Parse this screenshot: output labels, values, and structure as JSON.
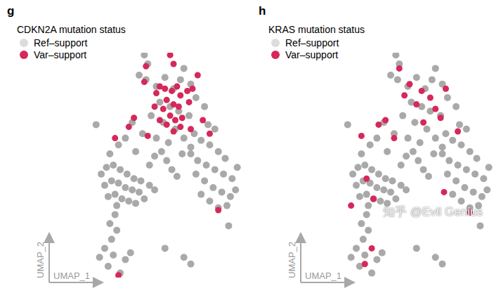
{
  "watermark": "知乎 @Evil Genius",
  "chart_data": [
    {
      "type": "scatter",
      "panel": "g",
      "title": "CDKN2A mutation status",
      "xlabel": "UMAP_1",
      "ylabel": "UMAP_2",
      "xlim": [
        0,
        10
      ],
      "ylim": [
        0,
        10
      ],
      "tick_labels": false,
      "legend": "upper left",
      "series": [
        {
          "name": "Ref–support",
          "color": "#8c8c8c",
          "marker": "circle",
          "x": [
            4.5,
            4.4,
            5.0,
            5.5,
            6.0,
            6.4,
            7.0,
            7.3,
            5.2,
            5.8,
            6.3,
            6.9,
            4.7,
            5.4,
            6.1,
            4.2,
            5.0,
            5.7,
            6.6,
            3.6,
            3.2,
            4.3,
            6.6,
            7.8,
            8.0,
            5.3,
            5.6,
            5.9,
            6.2,
            4.9,
            4.6,
            6.5,
            7.0,
            3.8,
            2.8,
            2.3,
            1.8,
            2.1,
            2.5,
            2.9,
            3.3,
            3.7,
            4.1,
            4.6,
            2.0,
            2.4,
            2.8,
            3.2,
            3.6,
            4.0,
            2.2,
            2.6,
            3.0,
            3.4,
            3.8,
            4.3,
            4.9,
            2.7,
            7.2,
            7.6,
            8.1,
            8.6,
            9.0,
            7.0,
            7.4,
            7.9,
            8.4,
            8.9,
            9.4,
            9.7,
            7.3,
            7.8,
            8.3,
            8.8,
            9.3,
            7.6,
            8.1,
            8.6,
            9.1,
            9.6,
            2.6,
            2.3,
            2.7,
            2.4,
            2.0,
            2.5,
            1.7,
            2.2,
            2.9,
            3.5,
            3.2,
            6.6,
            7.0,
            5.5,
            1.5,
            4.0,
            9.2,
            8.4
          ],
          "y": [
            9.5,
            8.8,
            8.5,
            8.9,
            8.4,
            8.8,
            8.6,
            8.0,
            7.8,
            7.6,
            7.4,
            7.2,
            7.2,
            6.9,
            6.6,
            6.4,
            6.2,
            6.0,
            6.2,
            6.9,
            6.2,
            9.9,
            9.3,
            7.6,
            6.8,
            5.6,
            5.2,
            4.8,
            4.5,
            5.4,
            5.0,
            5.5,
            5.8,
            5.6,
            5.9,
            5.5,
            4.6,
            4.9,
            5.0,
            4.8,
            4.6,
            4.4,
            4.3,
            4.1,
            4.1,
            4.3,
            4.2,
            4.0,
            3.9,
            3.8,
            3.6,
            3.7,
            3.5,
            3.4,
            3.3,
            3.5,
            3.9,
            3.2,
            6.4,
            6.1,
            5.9,
            5.6,
            5.3,
            5.5,
            5.2,
            5.0,
            4.8,
            4.6,
            4.4,
            4.9,
            4.6,
            4.3,
            4.0,
            3.8,
            3.6,
            3.7,
            3.4,
            3.1,
            3.2,
            3.9,
            2.8,
            2.4,
            2.1,
            1.7,
            1.3,
            1.0,
            0.9,
            0.5,
            0.2,
            1.1,
            0.8,
            0.9,
            0.6,
            1.3,
            6.8,
            9.0,
            2.3,
            6.6
          ]
        },
        {
          "name": "Var–support",
          "color": "#d6285a",
          "marker": "circle",
          "x": [
            4.4,
            4.3,
            5.8,
            5.0,
            5.2,
            5.5,
            5.9,
            6.2,
            6.4,
            6.8,
            7.1,
            5.6,
            6.0,
            5.4,
            6.3,
            5.8,
            6.1,
            6.5,
            5.6,
            6.0,
            6.4,
            5.2,
            4.9,
            6.9,
            7.4,
            6.0,
            3.7,
            4.5,
            2.6,
            3.4,
            8.1,
            7.7,
            8.6,
            2.8,
            7.0
          ],
          "y": [
            9.4,
            8.7,
            9.9,
            8.2,
            8.5,
            8.4,
            8.3,
            8.5,
            8.1,
            8.3,
            8.4,
            7.9,
            7.7,
            7.5,
            7.6,
            7.2,
            7.0,
            7.1,
            6.8,
            6.5,
            6.7,
            7.0,
            7.6,
            7.8,
            9.0,
            9.5,
            7.1,
            6.3,
            6.2,
            6.7,
            6.4,
            7.0,
            3.0,
            0.1,
            6.6
          ]
        }
      ]
    },
    {
      "type": "scatter",
      "panel": "h",
      "title": "KRAS mutation status",
      "xlabel": "UMAP_1",
      "ylabel": "UMAP_2",
      "xlim": [
        0,
        10
      ],
      "ylim": [
        0,
        10
      ],
      "tick_labels": false,
      "legend": "upper left",
      "series": [
        {
          "name": "Ref–support",
          "color": "#8c8c8c",
          "marker": "circle",
          "x": [
            4.5,
            4.4,
            5.0,
            5.5,
            6.0,
            6.4,
            7.0,
            7.3,
            5.2,
            5.8,
            6.3,
            6.9,
            4.7,
            5.4,
            6.1,
            4.2,
            5.0,
            5.7,
            6.6,
            3.6,
            3.2,
            4.3,
            6.6,
            7.8,
            8.0,
            5.3,
            5.6,
            5.9,
            6.2,
            4.9,
            4.6,
            6.5,
            7.0,
            3.8,
            2.8,
            2.3,
            1.8,
            2.1,
            2.5,
            2.9,
            3.3,
            3.7,
            4.1,
            4.6,
            2.0,
            2.4,
            2.8,
            3.2,
            3.6,
            4.0,
            2.2,
            2.6,
            3.0,
            3.4,
            3.8,
            4.3,
            4.9,
            2.7,
            7.2,
            7.6,
            8.1,
            8.6,
            9.0,
            7.0,
            7.4,
            7.9,
            8.4,
            8.9,
            9.4,
            9.7,
            7.3,
            7.8,
            8.3,
            8.8,
            9.3,
            7.6,
            8.1,
            8.6,
            9.1,
            9.6,
            2.6,
            2.3,
            2.7,
            2.4,
            2.0,
            2.5,
            1.7,
            2.2,
            2.9,
            3.5,
            3.2,
            6.6,
            7.0,
            5.5,
            1.5,
            4.0,
            9.2,
            8.4
          ],
          "y": [
            9.5,
            8.8,
            8.5,
            8.9,
            8.4,
            8.8,
            8.6,
            8.0,
            7.8,
            7.6,
            7.4,
            7.2,
            7.2,
            6.9,
            6.6,
            6.4,
            6.2,
            6.0,
            6.2,
            6.9,
            6.2,
            9.9,
            9.3,
            7.6,
            6.8,
            5.6,
            5.2,
            4.8,
            4.5,
            5.4,
            5.0,
            5.5,
            5.8,
            5.6,
            5.9,
            5.5,
            4.6,
            4.9,
            5.0,
            4.8,
            4.6,
            4.4,
            4.3,
            4.1,
            4.1,
            4.3,
            4.2,
            4.0,
            3.9,
            3.8,
            3.6,
            3.7,
            3.5,
            3.4,
            3.3,
            3.5,
            3.9,
            3.2,
            6.4,
            6.1,
            5.9,
            5.6,
            5.3,
            5.5,
            5.2,
            5.0,
            4.8,
            4.6,
            4.4,
            4.9,
            4.6,
            4.3,
            4.0,
            3.8,
            3.6,
            3.7,
            3.4,
            3.1,
            3.2,
            3.9,
            2.8,
            2.4,
            2.1,
            1.7,
            1.3,
            1.0,
            0.9,
            0.5,
            0.2,
            1.1,
            0.8,
            0.9,
            0.6,
            1.3,
            6.8,
            9.0,
            2.3,
            6.6
          ]
        },
        {
          "name": "Var–support",
          "color": "#d6285a",
          "marker": "circle",
          "x": [
            5.1,
            5.8,
            6.3,
            7.2,
            6.6,
            5.5,
            4.5,
            4.8,
            5.9,
            3.7,
            4.2,
            2.3,
            3.3,
            7.9,
            6.9,
            3.0,
            2.6,
            7.1,
            1.7,
            8.6,
            2.9,
            2.5
          ],
          "y": [
            8.6,
            8.3,
            8.0,
            8.4,
            7.5,
            7.7,
            9.3,
            8.1,
            6.9,
            7.0,
            6.2,
            6.3,
            6.8,
            6.5,
            7.1,
            3.5,
            4.4,
            3.8,
            3.2,
            2.9,
            1.3,
            0.6
          ]
        }
      ]
    }
  ]
}
